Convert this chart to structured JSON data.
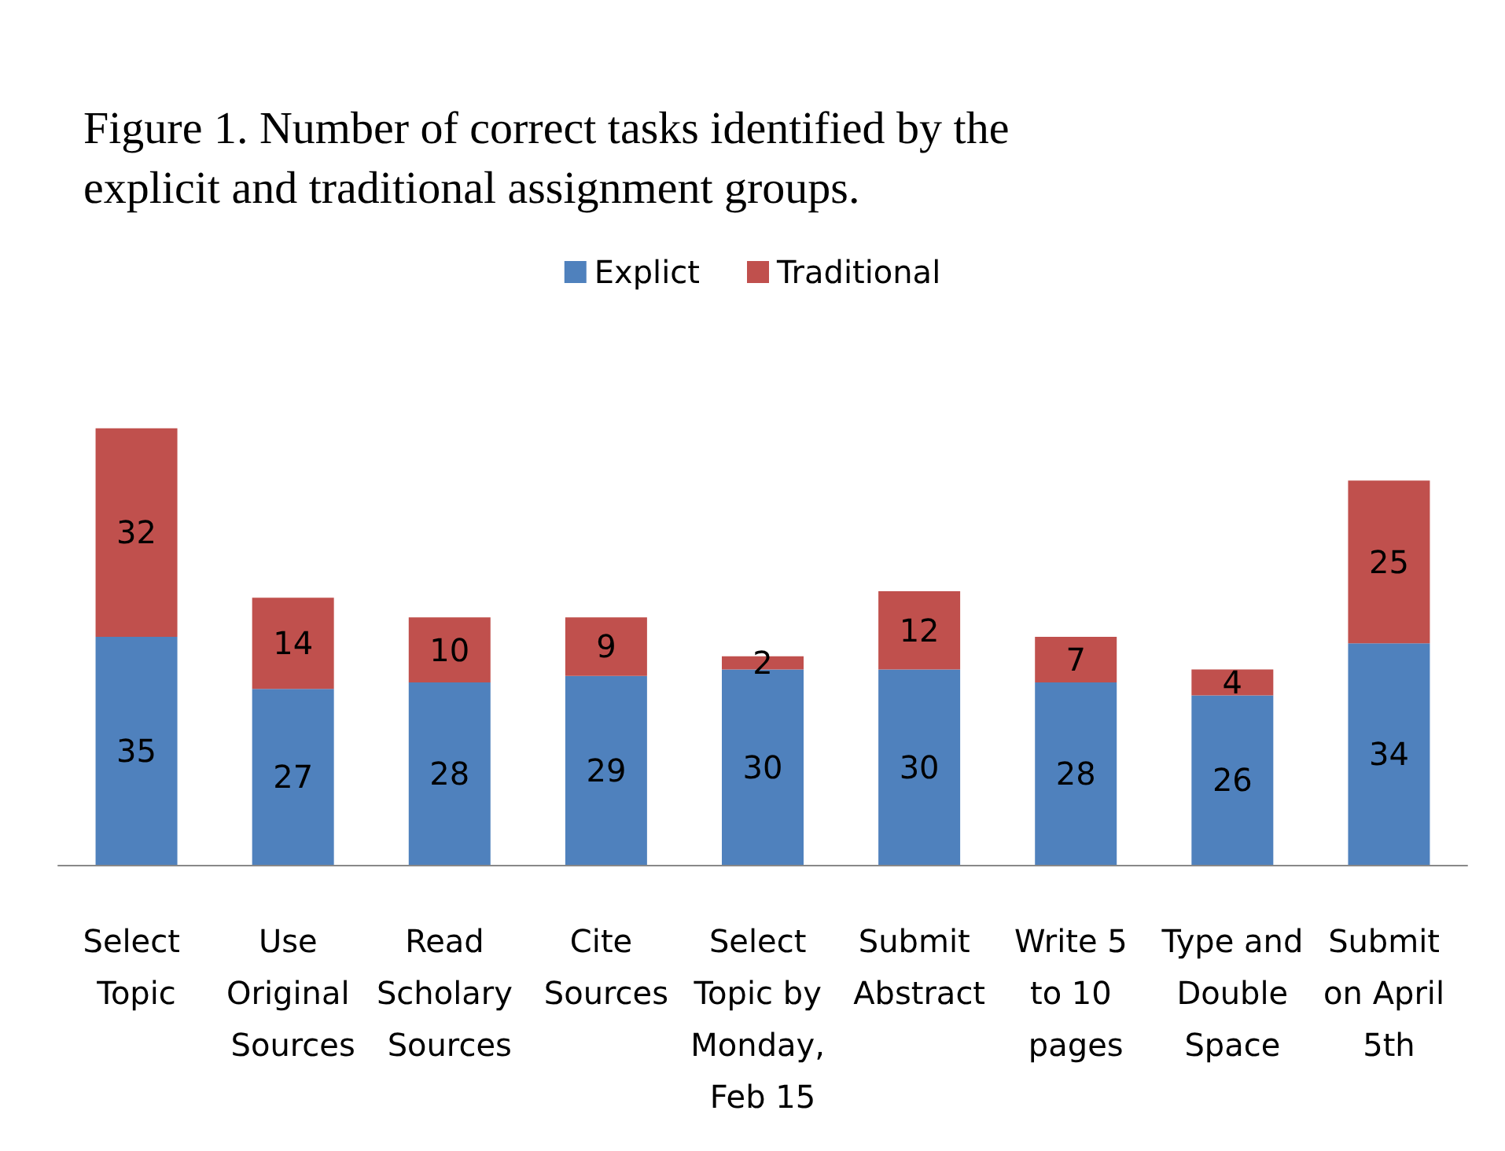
{
  "chart_data": {
    "type": "bar",
    "stacked": true,
    "data_labels": true,
    "legend": "top",
    "title": "Figure 1. Number of correct tasks identified by the explicit and traditional assignment groups.",
    "categories": [
      "Select Topic",
      "Use Original Sources",
      "Read Scholary Sources",
      "Cite Sources",
      "Select Topic by Monday, Feb 15",
      "Submit Abstract",
      "Write 5 to 10 pages",
      "Type and Double Space",
      "Submit on April 5th"
    ],
    "series": [
      {
        "name": "Explict",
        "color": "#4f81bd",
        "values": [
          35,
          27,
          28,
          29,
          30,
          30,
          28,
          26,
          34
        ]
      },
      {
        "name": "Traditional",
        "color": "#c0504d",
        "values": [
          32,
          14,
          10,
          9,
          2,
          12,
          7,
          4,
          25
        ]
      }
    ]
  }
}
